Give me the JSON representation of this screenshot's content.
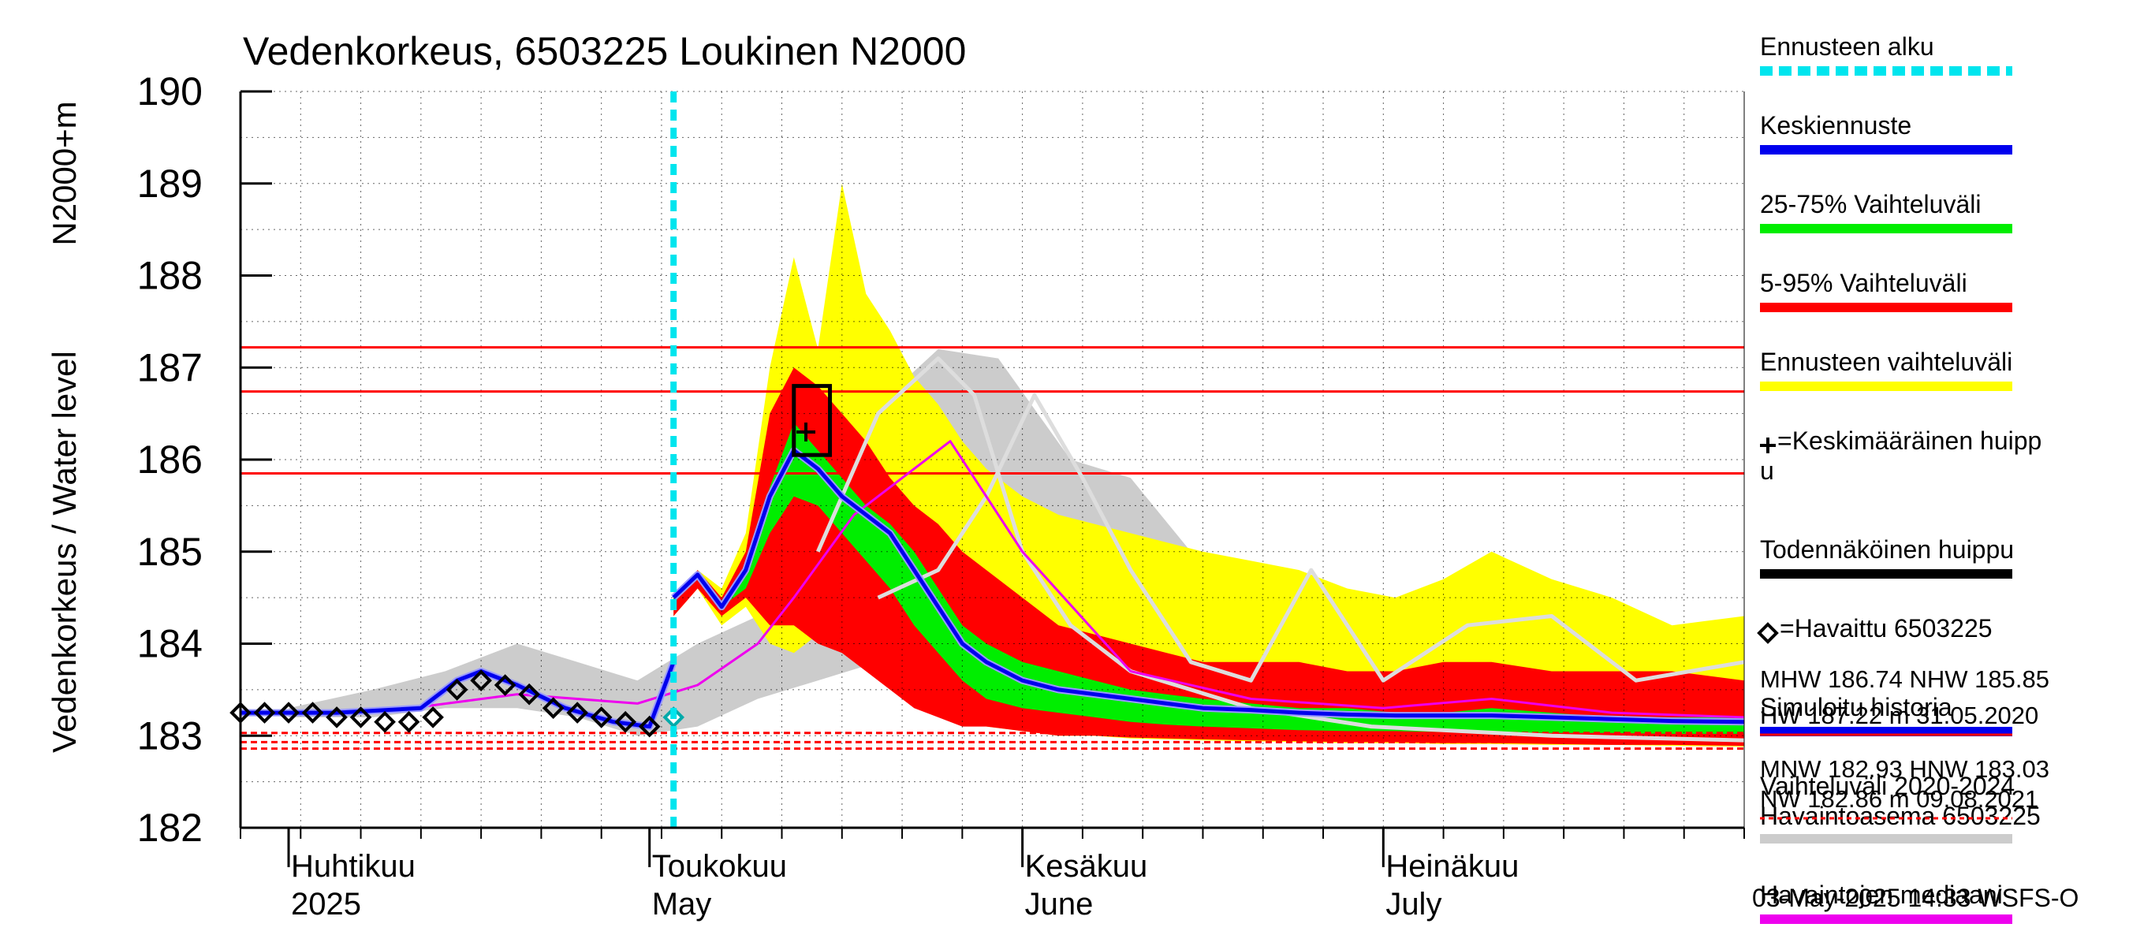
{
  "chart_data": {
    "type": "area",
    "title": "Vedenkorkeus, 6503225 Loukinen N2000",
    "ylabel_primary": "Vedenkorkeus / Water level",
    "ylabel_secondary": "N2000+m",
    "ylim": [
      182,
      190
    ],
    "yticks": [
      182,
      183,
      184,
      185,
      186,
      187,
      188,
      189,
      190
    ],
    "xlim": [
      "2025-03-28",
      "2025-07-31"
    ],
    "month_labels": [
      {
        "date": "2025-04-01",
        "fi": "Huhtikuu",
        "en": "2025"
      },
      {
        "date": "2025-05-01",
        "fi": "Toukokuu",
        "en": "May"
      },
      {
        "date": "2025-06-01",
        "fi": "Kesäkuu",
        "en": "June"
      },
      {
        "date": "2025-07-01",
        "fi": "Heinäkuu",
        "en": "July"
      }
    ],
    "forecast_start": "2025-05-03",
    "reference_lines": [
      {
        "name": "HW",
        "value": 187.22,
        "style": "solid"
      },
      {
        "name": "MHW",
        "value": 186.74,
        "style": "solid"
      },
      {
        "name": "NHW",
        "value": 185.85,
        "style": "solid"
      },
      {
        "name": "HNW",
        "value": 183.03,
        "style": "dashed"
      },
      {
        "name": "MNW",
        "value": 182.93,
        "style": "dashed"
      },
      {
        "name": "NW",
        "value": 182.86,
        "style": "dashed"
      }
    ],
    "forecast_dates": [
      "2025-05-03",
      "2025-05-05",
      "2025-05-07",
      "2025-05-09",
      "2025-05-11",
      "2025-05-13",
      "2025-05-15",
      "2025-05-17",
      "2025-05-19",
      "2025-05-21",
      "2025-05-23",
      "2025-05-25",
      "2025-05-27",
      "2025-05-29",
      "2025-06-01",
      "2025-06-04",
      "2025-06-07",
      "2025-06-10",
      "2025-06-13",
      "2025-06-16",
      "2025-06-20",
      "2025-06-24",
      "2025-06-28",
      "2025-07-02",
      "2025-07-06",
      "2025-07-10",
      "2025-07-15",
      "2025-07-20",
      "2025-07-25",
      "2025-07-31"
    ],
    "series": [
      {
        "name": "Ennusteen vaihteluväli",
        "color": "#ffff00",
        "kind": "band",
        "upper": [
          184.5,
          184.8,
          184.6,
          185.2,
          187.0,
          188.2,
          187.2,
          189.0,
          187.8,
          187.4,
          186.9,
          186.6,
          186.2,
          185.9,
          185.6,
          185.4,
          185.3,
          185.2,
          185.1,
          185.0,
          184.9,
          184.8,
          184.6,
          184.5,
          184.7,
          185.0,
          184.7,
          184.5,
          184.2,
          184.3
        ],
        "lower": [
          184.3,
          184.6,
          184.2,
          184.4,
          184.0,
          183.9,
          184.1,
          184.0,
          183.8,
          183.6,
          183.4,
          183.3,
          183.2,
          183.1,
          183.05,
          183.0,
          183.0,
          182.97,
          182.96,
          182.95,
          182.94,
          182.93,
          182.92,
          182.92,
          182.91,
          182.91,
          182.9,
          182.9,
          182.89,
          182.88
        ]
      },
      {
        "name": "5-95% Vaihteluväli",
        "color": "#ff0000",
        "kind": "band",
        "upper": [
          184.5,
          184.8,
          184.5,
          185.0,
          186.5,
          187.0,
          186.8,
          186.5,
          186.2,
          185.8,
          185.5,
          185.3,
          185.0,
          184.8,
          184.5,
          184.2,
          184.1,
          184.0,
          183.9,
          183.8,
          183.8,
          183.8,
          183.7,
          183.7,
          183.8,
          183.8,
          183.7,
          183.7,
          183.7,
          183.6
        ],
        "lower": [
          184.3,
          184.6,
          184.3,
          184.5,
          184.2,
          184.2,
          184.0,
          183.9,
          183.7,
          183.5,
          183.3,
          183.2,
          183.1,
          183.1,
          183.05,
          183.0,
          183.0,
          182.98,
          182.97,
          182.96,
          182.95,
          182.94,
          182.93,
          182.93,
          182.92,
          182.92,
          182.91,
          182.9,
          182.9,
          182.89
        ]
      },
      {
        "name": "25-75% Vaihteluväli",
        "color": "#00ee00",
        "kind": "band",
        "upper": [
          184.5,
          184.75,
          184.45,
          184.8,
          185.7,
          186.4,
          186.1,
          185.8,
          185.5,
          185.3,
          185.0,
          184.6,
          184.2,
          184.0,
          183.8,
          183.7,
          183.6,
          183.5,
          183.45,
          183.4,
          183.35,
          183.3,
          183.3,
          183.25,
          183.25,
          183.3,
          183.25,
          183.2,
          183.2,
          183.2
        ],
        "lower": [
          184.45,
          184.7,
          184.4,
          184.6,
          185.2,
          185.6,
          185.5,
          185.2,
          184.9,
          184.6,
          184.2,
          183.9,
          183.6,
          183.4,
          183.3,
          183.25,
          183.2,
          183.15,
          183.12,
          183.1,
          183.08,
          183.06,
          183.05,
          183.05,
          183.04,
          183.04,
          183.03,
          183.03,
          183.02,
          183.02
        ]
      },
      {
        "name": "Keskiennuste",
        "color": "#0000ee",
        "kind": "line",
        "values": [
          184.5,
          184.75,
          184.4,
          184.8,
          185.6,
          186.1,
          185.9,
          185.6,
          185.4,
          185.2,
          184.8,
          184.4,
          184.0,
          183.8,
          183.6,
          183.5,
          183.45,
          183.4,
          183.35,
          183.3,
          183.28,
          183.25,
          183.23,
          183.22,
          183.22,
          183.22,
          183.2,
          183.18,
          183.16,
          183.15
        ]
      }
    ],
    "observed": {
      "name": "=Havaittu 6503225",
      "color": "#000000",
      "dates": [
        "2025-03-28",
        "2025-03-30",
        "2025-04-01",
        "2025-04-03",
        "2025-04-05",
        "2025-04-07",
        "2025-04-09",
        "2025-04-11",
        "2025-04-13",
        "2025-04-15",
        "2025-04-17",
        "2025-04-19",
        "2025-04-21",
        "2025-04-23",
        "2025-04-25",
        "2025-04-27",
        "2025-04-29",
        "2025-05-01",
        "2025-05-03"
      ],
      "values": [
        183.25,
        183.25,
        183.25,
        183.25,
        183.2,
        183.2,
        183.15,
        183.15,
        183.2,
        183.5,
        183.6,
        183.55,
        183.45,
        183.3,
        183.25,
        183.2,
        183.15,
        183.1,
        183.2
      ]
    },
    "simulated_history": {
      "name": "Simuloitu historia",
      "color": "#0000ee",
      "dates": [
        "2025-03-28",
        "2025-04-05",
        "2025-04-12",
        "2025-04-15",
        "2025-04-17",
        "2025-04-20",
        "2025-04-24",
        "2025-04-28",
        "2025-05-01",
        "2025-05-03"
      ],
      "values": [
        183.25,
        183.25,
        183.3,
        183.6,
        183.7,
        183.55,
        183.3,
        183.15,
        183.1,
        183.8
      ]
    },
    "history_range": {
      "name": "Vaihteluväli 2020-2024 Havaintoasema 6503225",
      "color": "#cccccc",
      "dates": [
        "2025-04-01",
        "2025-04-08",
        "2025-04-14",
        "2025-04-20",
        "2025-04-25",
        "2025-04-30",
        "2025-05-05",
        "2025-05-10",
        "2025-05-15",
        "2025-05-20",
        "2025-05-25",
        "2025-05-30",
        "2025-06-05",
        "2025-06-10",
        "2025-06-15",
        "2025-06-20",
        "2025-06-25",
        "2025-07-01",
        "2025-07-10",
        "2025-07-20",
        "2025-07-31"
      ],
      "upper": [
        183.3,
        183.5,
        183.7,
        184.0,
        183.8,
        183.6,
        184.0,
        184.3,
        185.2,
        186.6,
        187.2,
        187.1,
        186.0,
        185.8,
        185.0,
        184.6,
        184.4,
        184.2,
        184.0,
        183.9,
        183.9
      ],
      "lower": [
        183.2,
        183.2,
        183.3,
        183.3,
        183.2,
        183.0,
        183.1,
        183.4,
        183.6,
        183.8,
        184.2,
        184.3,
        183.8,
        183.4,
        183.2,
        183.1,
        183.0,
        183.0,
        183.0,
        182.95,
        182.95
      ]
    },
    "median": {
      "name": "Havaintojen mediaani",
      "color": "#ee00ee",
      "dates": [
        "2025-03-28",
        "2025-04-10",
        "2025-04-20",
        "2025-04-30",
        "2025-05-05",
        "2025-05-10",
        "2025-05-13",
        "2025-05-18",
        "2025-05-23",
        "2025-05-26",
        "2025-06-01",
        "2025-06-10",
        "2025-06-20",
        "2025-07-01",
        "2025-07-10",
        "2025-07-20",
        "2025-07-31"
      ],
      "values": [
        183.25,
        183.28,
        183.45,
        183.35,
        183.55,
        184.0,
        184.5,
        185.4,
        185.9,
        186.2,
        185.0,
        183.7,
        183.4,
        183.3,
        183.4,
        183.25,
        183.2
      ]
    },
    "history_lines": {
      "name": "Vaihteluväli 2020-2024 Havaintoasema 6503225",
      "color": "#dddddd",
      "lines": [
        {
          "dates": [
            "2025-05-15",
            "2025-05-20",
            "2025-05-25",
            "2025-05-28",
            "2025-06-01",
            "2025-06-05",
            "2025-06-10",
            "2025-06-20",
            "2025-06-30",
            "2025-07-15",
            "2025-07-31"
          ],
          "values": [
            185.0,
            186.5,
            187.1,
            186.7,
            185.0,
            184.2,
            183.7,
            183.3,
            183.1,
            183.0,
            182.95
          ]
        },
        {
          "dates": [
            "2025-05-20",
            "2025-05-25",
            "2025-05-29",
            "2025-06-02",
            "2025-06-06",
            "2025-06-10",
            "2025-06-15",
            "2025-06-20",
            "2025-06-25",
            "2025-07-01",
            "2025-07-08",
            "2025-07-15",
            "2025-07-22",
            "2025-07-31"
          ],
          "values": [
            184.5,
            184.8,
            185.6,
            186.7,
            185.8,
            184.8,
            183.8,
            183.6,
            184.8,
            183.6,
            184.2,
            184.3,
            183.6,
            183.8
          ]
        }
      ]
    },
    "peak": {
      "name": "=Keskimääräinen huippu",
      "date": "2025-05-14",
      "value": 186.3,
      "box_dates": [
        "2025-05-13",
        "2025-05-16"
      ],
      "box_values": [
        186.05,
        186.8
      ]
    },
    "legend": [
      {
        "text": "Ennusteen alku",
        "color": "#00e5ee",
        "style": "dashed"
      },
      {
        "text": "Keskiennuste",
        "color": "#0000ee",
        "style": "solid"
      },
      {
        "text": "25-75% Vaihteluväli",
        "color": "#00ee00",
        "style": "solid"
      },
      {
        "text": "5-95% Vaihteluväli",
        "color": "#ff0000",
        "style": "solid"
      },
      {
        "text": "Ennusteen vaihteluväli",
        "color": "#ffff00",
        "style": "solid"
      },
      {
        "text": "=Keskimääräinen huipp",
        "text2": "u",
        "color": "",
        "style": "none",
        "marker": "plus"
      },
      {
        "text": "Todennäköinen huippu",
        "color": "#000000",
        "style": "solid"
      },
      {
        "text": "=Havaittu 6503225",
        "color": "",
        "style": "none",
        "marker": "diamond"
      },
      {
        "text": "Simuloitu historia",
        "color": "#0000ee",
        "style": "solid"
      },
      {
        "text": "Vaihteluväli 2020-2024",
        "text2": " Havaintoasema 6503225",
        "color": "#cccccc",
        "style": "solid"
      },
      {
        "text": "Havaintojen mediaani",
        "color": "#ee00ee",
        "style": "solid"
      }
    ],
    "stats_text": [
      "MHW 186.74 NHW 185.85",
      "HW 187.22 m 31.05.2020",
      "MNW 182.93 HNW 183.03",
      "NW 182.86 m 09.08.2021"
    ],
    "footer": "03-May-2025 14:33 WSFS-O"
  }
}
